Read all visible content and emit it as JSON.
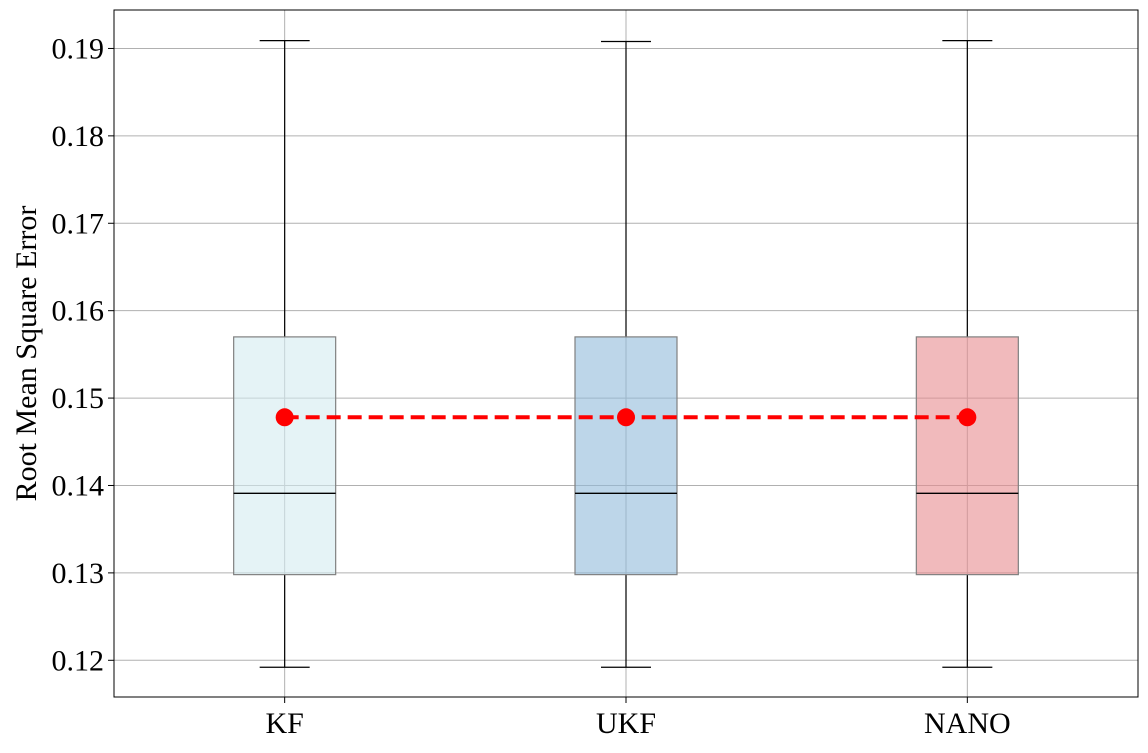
{
  "chart_data": {
    "type": "box",
    "title": "",
    "xlabel": "",
    "ylabel": "Root Mean Square Error",
    "categories": [
      "KF",
      "UKF",
      "NANO"
    ],
    "ylim": [
      0.1158,
      0.1944
    ],
    "yticks": [
      0.12,
      0.13,
      0.14,
      0.15,
      0.16,
      0.17,
      0.18,
      0.19
    ],
    "ytick_labels": [
      "0.12",
      "0.13",
      "0.14",
      "0.15",
      "0.16",
      "0.17",
      "0.18",
      "0.19"
    ],
    "grid": true,
    "legend": false,
    "boxes": [
      {
        "category": "KF",
        "whisker_low": 0.1192,
        "q1": 0.1298,
        "median": 0.1391,
        "q3": 0.157,
        "whisker_high": 0.1909,
        "color": "#d4ebf0"
      },
      {
        "category": "UKF",
        "whisker_low": 0.1192,
        "q1": 0.1298,
        "median": 0.1391,
        "q3": 0.157,
        "whisker_high": 0.1908,
        "color": "#91bbda"
      },
      {
        "category": "NANO",
        "whisker_low": 0.1192,
        "q1": 0.1298,
        "median": 0.1391,
        "q3": 0.157,
        "whisker_high": 0.1909,
        "color": "#e88c8f"
      }
    ],
    "mean_line": {
      "values": [
        0.1478,
        0.1478,
        0.1478
      ],
      "color": "#ff0000",
      "style": "dashed",
      "marker": "circle"
    }
  }
}
